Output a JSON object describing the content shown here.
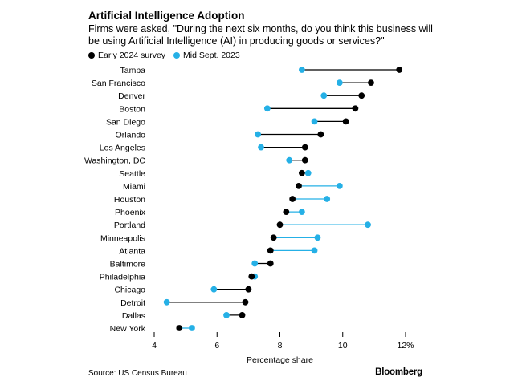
{
  "chart_data": {
    "type": "dumbbell",
    "title": "Artificial Intelligence Adoption",
    "subtitle": "Firms were asked, \"During the next six months, do you think this business will be using Artificial Intelligence (AI) in producing goods or services?\"",
    "xlabel": "Percentage share",
    "xlim": [
      4,
      12
    ],
    "xticks": [
      4,
      6,
      8,
      10,
      12
    ],
    "xtick_labels": [
      "4",
      "6",
      "8",
      "10",
      "12%"
    ],
    "series": [
      {
        "name": "Early 2024 survey",
        "color": "#000000"
      },
      {
        "name": "Mid Sept. 2023",
        "color": "#25b0e6"
      }
    ],
    "categories": [
      "Tampa",
      "San Francisco",
      "Denver",
      "Boston",
      "San Diego",
      "Orlando",
      "Los Angeles",
      "Washington, DC",
      "Seattle",
      "Miami",
      "Houston",
      "Phoenix",
      "Portland",
      "Minneapolis",
      "Atlanta",
      "Baltimore",
      "Philadelphia",
      "Chicago",
      "Detroit",
      "Dallas",
      "New York"
    ],
    "early_2024": [
      11.8,
      10.9,
      10.6,
      10.4,
      10.1,
      9.3,
      8.8,
      8.8,
      8.7,
      8.6,
      8.4,
      8.2,
      8.0,
      7.8,
      7.7,
      7.7,
      7.1,
      7.0,
      6.9,
      6.8,
      4.8
    ],
    "mid_sept_2023": [
      8.7,
      9.9,
      9.4,
      7.6,
      9.1,
      7.3,
      7.4,
      8.3,
      8.9,
      9.9,
      9.5,
      8.7,
      10.8,
      9.2,
      9.1,
      7.2,
      7.2,
      5.9,
      4.4,
      6.3,
      5.2
    ],
    "line_colors": [
      "#000000",
      "#000000",
      "#000000",
      "#000000",
      "#000000",
      "#000000",
      "#000000",
      "#000000",
      "#25b0e6",
      "#25b0e6",
      "#25b0e6",
      "#25b0e6",
      "#25b0e6",
      "#25b0e6",
      "#25b0e6",
      "#000000",
      "#25b0e6",
      "#000000",
      "#000000",
      "#000000",
      "#25b0e6"
    ],
    "source": "Source: US Census Bureau",
    "brand": "Bloomberg"
  }
}
